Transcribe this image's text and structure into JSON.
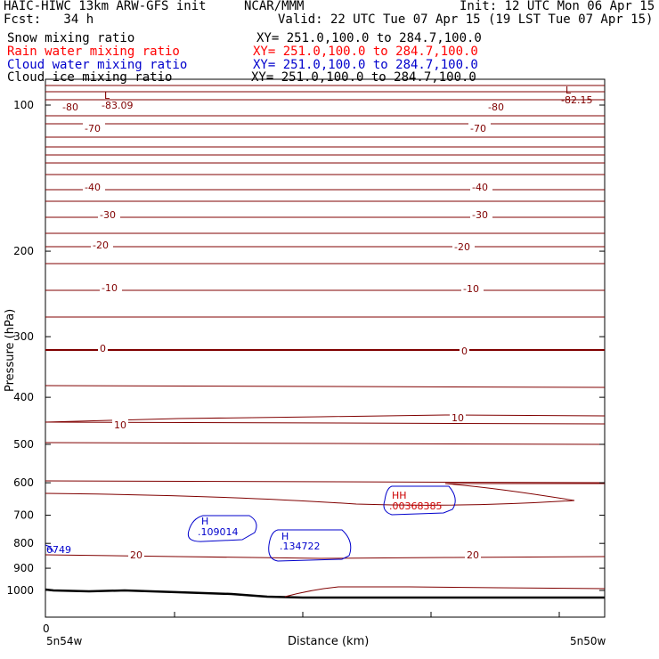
{
  "header": {
    "model": "HAIC-HIWC 13km ARW-GFS init",
    "org": "NCAR/MMM",
    "init": "Init: 12 UTC Mon 06 Apr 15",
    "fcst": "Fcst:   34 h",
    "valid": "Valid: 22 UTC Tue 07 Apr 15 (19 LST Tue 07 Apr 15)"
  },
  "fields": [
    {
      "name": "Snow mixing ratio",
      "xy": "XY= 251.0,100.0 to 284.7,100.0",
      "color": "#000000"
    },
    {
      "name": "Rain water mixing ratio",
      "xy": "XY= 251.0,100.0 to 284.7,100.0",
      "color": "#ff0000"
    },
    {
      "name": "Cloud water mixing ratio",
      "xy": "XY= 251.0,100.0 to 284.7,100.0",
      "color": "#0000cc"
    },
    {
      "name": "Cloud ice mixing ratio",
      "xy": "XY= 251.0,100.0 to 284.7,100.0",
      "color": "#000000"
    }
  ],
  "chart_data": {
    "type": "line",
    "ylabel": "Pressure (hPa)",
    "xlabel": "Distance (km)",
    "x_start_label": "0",
    "x_left_label": "5n54w",
    "x_right_label": "5n50w",
    "y_ticks": [
      "100",
      "200",
      "300",
      "400",
      "500",
      "600",
      "700",
      "800",
      "900",
      "1000"
    ],
    "temperature_contours": [
      {
        "value": "-80",
        "p": 122
      },
      {
        "value": "-70",
        "p": 146
      },
      {
        "value": "-40",
        "p": 215
      },
      {
        "value": "-30",
        "p": 253
      },
      {
        "value": "-20",
        "p": 296
      },
      {
        "value": "-10",
        "p": 355
      },
      {
        "value": "0",
        "p": 440
      },
      {
        "value": "10",
        "p": 582
      },
      {
        "value": "20",
        "p": 793
      }
    ],
    "extrema": [
      {
        "type": "L",
        "value": "-83.09",
        "color": "#800000"
      },
      {
        "type": "L",
        "value": "-82.15",
        "color": "#800000"
      },
      {
        "type": "H",
        "value": ".109014",
        "color": "#0000cc"
      },
      {
        "type": "H",
        "value": ".134722",
        "color": "#0000cc"
      },
      {
        "type": "HH",
        "value": ".00368385",
        "color": "#cc0000"
      },
      {
        "type": "",
        "value": "6749",
        "color": "#0000cc"
      }
    ],
    "ylim": [
      1050,
      70
    ],
    "log_scale": true,
    "grid": false
  }
}
